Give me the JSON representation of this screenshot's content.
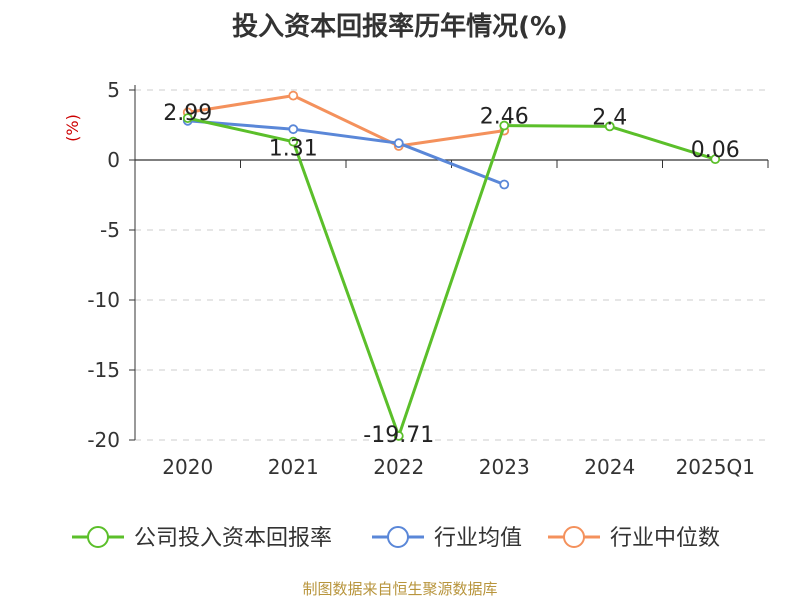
{
  "chart_data": {
    "type": "line",
    "title": "投入资本回报率历年情况(%)",
    "ylabel": "(%)",
    "categories": [
      "2020",
      "2021",
      "2022",
      "2023",
      "2024",
      "2025Q1"
    ],
    "ylim": [
      -20,
      5
    ],
    "yticks": [
      5,
      0,
      -5,
      -10,
      -15,
      -20
    ],
    "grid": true,
    "legend_position": "bottom",
    "series": [
      {
        "name": "公司投入资本回报率",
        "color": "#5bbf2a",
        "values": [
          2.99,
          1.31,
          -19.71,
          2.46,
          2.4,
          0.06
        ],
        "labels": [
          "2.99",
          "1.31",
          "-19.71",
          "2.46",
          "2.4",
          "0.06"
        ]
      },
      {
        "name": "行业均值",
        "color": "#5a87d8",
        "values": [
          2.8,
          2.2,
          1.2,
          -1.75,
          null,
          null
        ]
      },
      {
        "name": "行业中位数",
        "color": "#f4915c",
        "values": [
          3.4,
          4.6,
          1.0,
          2.1,
          null,
          null
        ]
      }
    ]
  },
  "source": "制图数据来自恒生聚源数据库"
}
